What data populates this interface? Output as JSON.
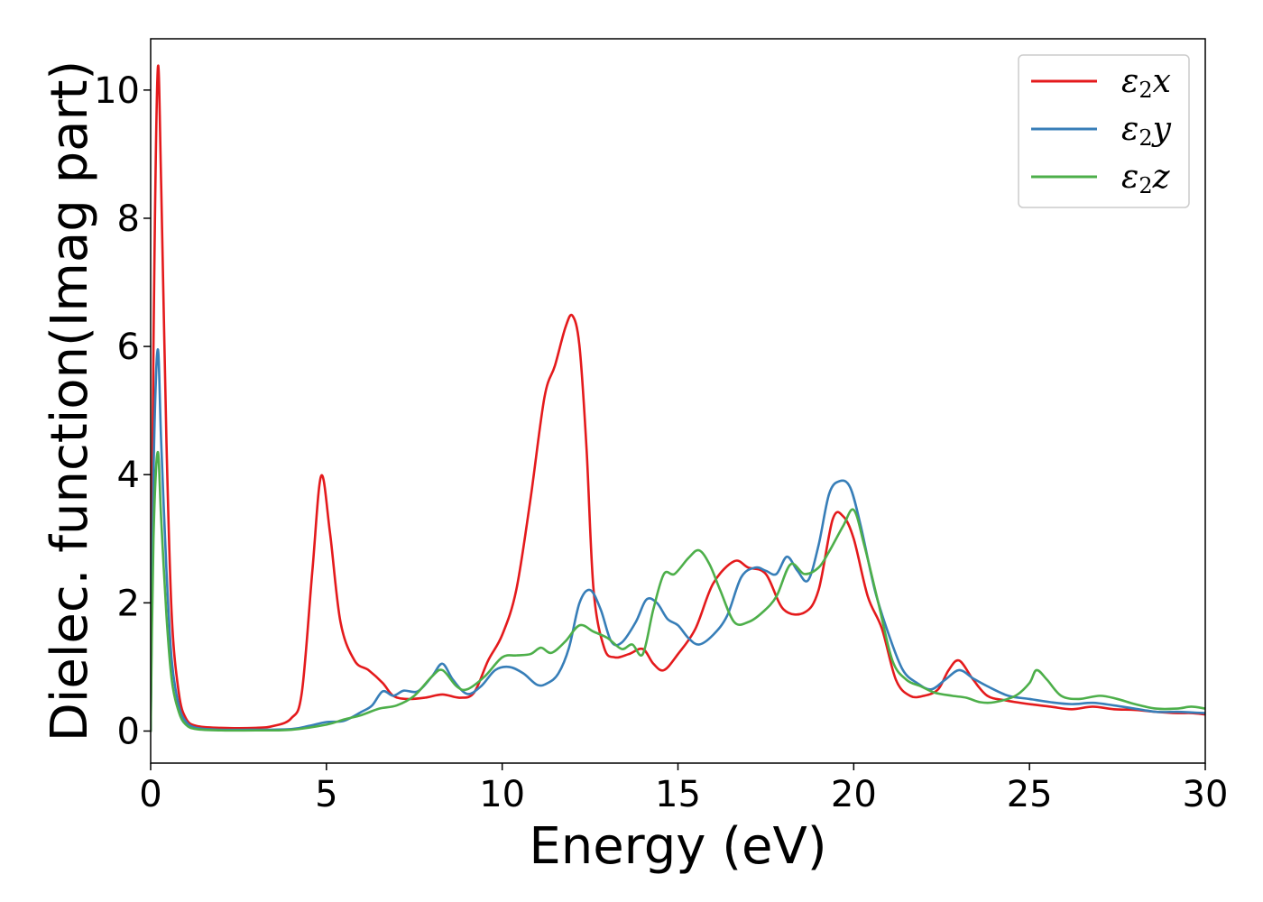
{
  "chart_data": {
    "type": "line",
    "title": "",
    "xlabel": "Energy (eV)",
    "ylabel": "Dielec. function(Imag part)",
    "xlim": [
      0,
      30
    ],
    "ylim": [
      -0.5,
      10.8
    ],
    "xticks": [
      0,
      5,
      10,
      15,
      20,
      25,
      30
    ],
    "yticks": [
      0,
      2,
      4,
      6,
      8,
      10
    ],
    "grid": false,
    "legend": "top-right",
    "series": [
      {
        "name": "ε₂x",
        "legend_base": "ε",
        "legend_sub": "2",
        "legend_suffix": "x",
        "color": "#e41a1c",
        "x": [
          0,
          0.08,
          0.2,
          0.3,
          0.45,
          0.6,
          0.8,
          1.0,
          1.3,
          2.0,
          3.0,
          3.5,
          4.0,
          4.3,
          4.6,
          4.85,
          5.1,
          5.4,
          5.8,
          6.2,
          6.6,
          6.9,
          7.3,
          7.8,
          8.3,
          8.8,
          9.2,
          9.6,
          10.0,
          10.4,
          10.8,
          11.2,
          11.5,
          11.8,
          12.0,
          12.2,
          12.4,
          12.6,
          12.9,
          13.2,
          13.6,
          14.0,
          14.3,
          14.6,
          15.0,
          15.5,
          16.0,
          16.6,
          17.0,
          17.5,
          18.0,
          18.6,
          19.0,
          19.4,
          19.7,
          20.0,
          20.4,
          20.8,
          21.2,
          21.6,
          22.0,
          22.4,
          22.7,
          23.0,
          23.4,
          23.8,
          24.3,
          25.0,
          25.6,
          26.2,
          26.8,
          27.4,
          28.0,
          28.6,
          29.2,
          29.6,
          30.0
        ],
        "values": [
          0,
          6.0,
          10.3,
          8.5,
          4.5,
          1.8,
          0.6,
          0.2,
          0.08,
          0.05,
          0.05,
          0.08,
          0.2,
          0.6,
          2.5,
          3.98,
          3.1,
          1.7,
          1.1,
          0.95,
          0.75,
          0.55,
          0.5,
          0.52,
          0.57,
          0.52,
          0.6,
          1.1,
          1.5,
          2.2,
          3.6,
          5.2,
          5.7,
          6.3,
          6.48,
          6.0,
          4.4,
          2.2,
          1.3,
          1.15,
          1.2,
          1.28,
          1.05,
          0.95,
          1.2,
          1.6,
          2.3,
          2.65,
          2.55,
          2.45,
          1.9,
          1.85,
          2.2,
          3.3,
          3.35,
          3.0,
          2.1,
          1.6,
          0.8,
          0.55,
          0.55,
          0.65,
          0.95,
          1.1,
          0.8,
          0.55,
          0.48,
          0.42,
          0.38,
          0.34,
          0.38,
          0.34,
          0.33,
          0.3,
          0.28,
          0.28,
          0.26
        ]
      },
      {
        "name": "ε₂y",
        "legend_base": "ε",
        "legend_sub": "2",
        "legend_suffix": "y",
        "color": "#377eb8",
        "x": [
          0,
          0.08,
          0.2,
          0.3,
          0.45,
          0.6,
          0.8,
          1.0,
          1.3,
          2.0,
          3.0,
          4.0,
          4.5,
          5.0,
          5.5,
          6.0,
          6.3,
          6.6,
          6.9,
          7.2,
          7.6,
          8.0,
          8.3,
          8.6,
          9.0,
          9.4,
          9.8,
          10.2,
          10.6,
          11.0,
          11.3,
          11.6,
          11.9,
          12.2,
          12.5,
          12.8,
          13.1,
          13.4,
          13.8,
          14.1,
          14.4,
          14.7,
          15.0,
          15.3,
          15.6,
          16.0,
          16.4,
          16.8,
          17.2,
          17.5,
          17.8,
          18.1,
          18.4,
          18.7,
          19.0,
          19.3,
          19.6,
          19.9,
          20.2,
          20.6,
          21.0,
          21.4,
          21.8,
          22.2,
          22.6,
          23.0,
          23.4,
          23.8,
          24.4,
          25.0,
          25.6,
          26.2,
          26.8,
          27.4,
          28.0,
          28.6,
          29.2,
          29.6,
          30.0
        ],
        "values": [
          0,
          4.0,
          5.95,
          4.5,
          2.5,
          1.1,
          0.4,
          0.15,
          0.05,
          0.02,
          0.02,
          0.03,
          0.08,
          0.14,
          0.16,
          0.3,
          0.4,
          0.62,
          0.55,
          0.63,
          0.62,
          0.85,
          1.05,
          0.8,
          0.58,
          0.7,
          0.95,
          1.0,
          0.9,
          0.72,
          0.75,
          0.9,
          1.3,
          2.0,
          2.2,
          1.9,
          1.4,
          1.38,
          1.7,
          2.05,
          2.0,
          1.75,
          1.65,
          1.45,
          1.35,
          1.5,
          1.8,
          2.4,
          2.55,
          2.5,
          2.45,
          2.72,
          2.5,
          2.35,
          2.9,
          3.7,
          3.9,
          3.8,
          3.2,
          2.2,
          1.5,
          0.95,
          0.75,
          0.65,
          0.8,
          0.95,
          0.82,
          0.7,
          0.55,
          0.5,
          0.45,
          0.42,
          0.44,
          0.4,
          0.35,
          0.3,
          0.3,
          0.29,
          0.28
        ]
      },
      {
        "name": "ε₂z",
        "legend_base": "ε",
        "legend_sub": "2",
        "legend_suffix": "z",
        "color": "#4daf4a",
        "x": [
          0,
          0.08,
          0.2,
          0.3,
          0.45,
          0.6,
          0.8,
          1.0,
          1.3,
          2.0,
          3.0,
          4.0,
          5.0,
          5.5,
          6.0,
          6.5,
          7.0,
          7.5,
          8.0,
          8.3,
          8.7,
          9.0,
          9.5,
          10.0,
          10.4,
          10.8,
          11.1,
          11.4,
          11.8,
          12.2,
          12.6,
          13.0,
          13.4,
          13.7,
          14.0,
          14.3,
          14.6,
          14.9,
          15.3,
          15.6,
          15.9,
          16.2,
          16.6,
          17.0,
          17.4,
          17.8,
          18.2,
          18.6,
          19.0,
          19.3,
          19.7,
          20.0,
          20.3,
          20.7,
          21.1,
          21.5,
          21.9,
          22.3,
          22.8,
          23.2,
          23.6,
          24.0,
          24.6,
          25.0,
          25.2,
          25.5,
          25.9,
          26.4,
          27.0,
          27.5,
          28.0,
          28.6,
          29.2,
          29.6,
          30.0
        ],
        "values": [
          0,
          3.0,
          4.35,
          3.3,
          1.8,
          0.8,
          0.3,
          0.1,
          0.03,
          0.01,
          0.01,
          0.02,
          0.1,
          0.18,
          0.25,
          0.35,
          0.4,
          0.55,
          0.85,
          0.95,
          0.7,
          0.65,
          0.85,
          1.15,
          1.18,
          1.2,
          1.3,
          1.22,
          1.4,
          1.65,
          1.55,
          1.45,
          1.28,
          1.35,
          1.2,
          1.9,
          2.45,
          2.45,
          2.7,
          2.82,
          2.6,
          2.2,
          1.7,
          1.7,
          1.85,
          2.1,
          2.6,
          2.45,
          2.55,
          2.8,
          3.2,
          3.45,
          2.9,
          2.0,
          1.1,
          0.8,
          0.7,
          0.6,
          0.55,
          0.52,
          0.45,
          0.45,
          0.55,
          0.75,
          0.95,
          0.8,
          0.55,
          0.5,
          0.55,
          0.5,
          0.42,
          0.35,
          0.35,
          0.38,
          0.35
        ]
      }
    ]
  }
}
